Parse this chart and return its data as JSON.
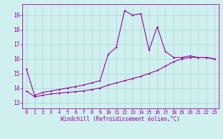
{
  "title": "",
  "xlabel": "Windchill (Refroidissement éolien,°C)",
  "bg_color": "#d0f0f0",
  "grid_color": "#b0d8d8",
  "line_color": "#990099",
  "x_ticks": [
    0,
    1,
    2,
    3,
    4,
    5,
    6,
    7,
    8,
    9,
    10,
    11,
    12,
    13,
    14,
    15,
    16,
    17,
    18,
    19,
    20,
    21,
    22,
    23
  ],
  "y_ticks": [
    13,
    14,
    15,
    16,
    17,
    18,
    19
  ],
  "ylim": [
    12.6,
    19.75
  ],
  "xlim": [
    -0.5,
    23.5
  ],
  "series1_x": [
    0,
    1,
    2,
    3,
    4,
    5,
    6,
    7,
    8,
    9,
    10,
    11,
    12,
    13,
    14,
    15,
    16,
    17,
    18,
    19,
    20,
    21,
    22,
    23
  ],
  "series1_y": [
    15.3,
    13.5,
    13.7,
    13.8,
    13.9,
    14.0,
    14.1,
    14.2,
    14.35,
    14.5,
    16.3,
    16.8,
    19.3,
    19.0,
    19.1,
    16.6,
    18.2,
    16.5,
    16.1,
    16.1,
    16.2,
    16.1,
    16.1,
    16.0
  ],
  "series2_x": [
    0,
    1,
    2,
    3,
    4,
    5,
    6,
    7,
    8,
    9,
    10,
    11,
    12,
    13,
    14,
    15,
    16,
    17,
    18,
    19,
    20,
    21,
    22,
    23
  ],
  "series2_y": [
    13.8,
    13.4,
    13.5,
    13.6,
    13.65,
    13.7,
    13.75,
    13.8,
    13.9,
    14.0,
    14.2,
    14.35,
    14.5,
    14.65,
    14.8,
    15.0,
    15.2,
    15.5,
    15.8,
    16.0,
    16.1,
    16.1,
    16.1,
    16.0
  ],
  "tick_fontsize": 5,
  "label_fontsize": 5.5
}
